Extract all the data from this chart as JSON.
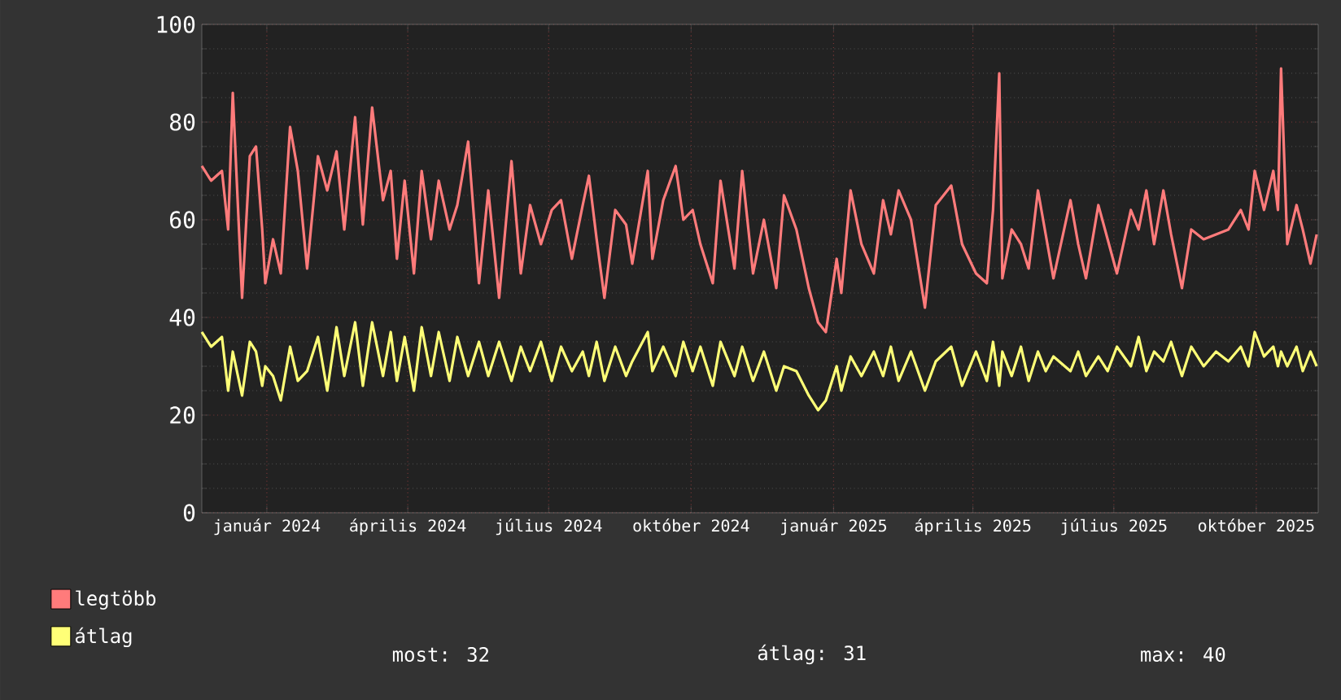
{
  "chart_data": {
    "type": "line",
    "x": [
      "2023-11-20",
      "2023-11-26",
      "2023-12-03",
      "2023-12-07",
      "2023-12-10",
      "2023-12-16",
      "2023-12-21",
      "2023-12-25",
      "2023-12-29",
      "2023-12-31",
      "2024-01-05",
      "2024-01-10",
      "2024-01-16",
      "2024-01-21",
      "2024-01-27",
      "2024-02-03",
      "2024-02-09",
      "2024-02-15",
      "2024-02-20",
      "2024-02-27",
      "2024-03-03",
      "2024-03-09",
      "2024-03-16",
      "2024-03-21",
      "2024-03-25",
      "2024-03-30",
      "2024-04-05",
      "2024-04-10",
      "2024-04-16",
      "2024-04-21",
      "2024-04-28",
      "2024-05-03",
      "2024-05-10",
      "2024-05-17",
      "2024-05-23",
      "2024-05-30",
      "2024-06-07",
      "2024-06-13",
      "2024-06-19",
      "2024-06-26",
      "2024-07-03",
      "2024-07-09",
      "2024-07-16",
      "2024-07-23",
      "2024-07-27",
      "2024-08-01",
      "2024-08-06",
      "2024-08-13",
      "2024-08-20",
      "2024-08-24",
      "2024-09-03",
      "2024-09-06",
      "2024-09-13",
      "2024-09-21",
      "2024-09-26",
      "2024-10-02",
      "2024-10-07",
      "2024-10-15",
      "2024-10-20",
      "2024-10-29",
      "2024-11-03",
      "2024-11-10",
      "2024-11-17",
      "2024-11-25",
      "2024-11-30",
      "2024-12-08",
      "2024-12-16",
      "2024-12-22",
      "2024-12-27",
      "2025-01-03",
      "2025-01-06",
      "2025-01-12",
      "2025-01-19",
      "2025-01-27",
      "2025-02-02",
      "2025-02-07",
      "2025-02-12",
      "2025-02-20",
      "2025-03-01",
      "2025-03-08",
      "2025-03-18",
      "2025-03-25",
      "2025-04-03",
      "2025-04-10",
      "2025-04-14",
      "2025-04-18",
      "2025-04-20",
      "2025-04-26",
      "2025-05-02",
      "2025-05-07",
      "2025-05-13",
      "2025-05-18",
      "2025-05-23",
      "2025-06-03",
      "2025-06-08",
      "2025-06-13",
      "2025-06-21",
      "2025-06-27",
      "2025-07-03",
      "2025-07-12",
      "2025-07-17",
      "2025-07-22",
      "2025-07-27",
      "2025-08-02",
      "2025-08-07",
      "2025-08-14",
      "2025-08-20",
      "2025-08-28",
      "2025-09-05",
      "2025-09-13",
      "2025-09-21",
      "2025-09-26",
      "2025-09-30",
      "2025-10-06",
      "2025-10-12",
      "2025-10-15",
      "2025-10-17",
      "2025-10-21",
      "2025-10-27",
      "2025-10-31",
      "2025-11-05",
      "2025-11-09"
    ],
    "series": [
      {
        "name": "legtöbb",
        "color": "#ff7b7b",
        "values": [
          71,
          68,
          70,
          58,
          86,
          44,
          73,
          75,
          58,
          47,
          56,
          49,
          79,
          70,
          50,
          73,
          66,
          74,
          58,
          81,
          59,
          83,
          64,
          70,
          52,
          68,
          49,
          70,
          56,
          68,
          58,
          63,
          76,
          47,
          66,
          44,
          72,
          49,
          63,
          55,
          62,
          64,
          52,
          63,
          69,
          56,
          44,
          62,
          59,
          51,
          70,
          52,
          64,
          71,
          60,
          62,
          55,
          47,
          68,
          50,
          70,
          49,
          60,
          46,
          65,
          58,
          46,
          39,
          37,
          52,
          45,
          66,
          55,
          49,
          64,
          57,
          66,
          60,
          42,
          63,
          67,
          55,
          49,
          47,
          62,
          90,
          48,
          58,
          55,
          50,
          66,
          57,
          48,
          64,
          55,
          48,
          63,
          56,
          49,
          62,
          58,
          66,
          55,
          66,
          57,
          46,
          58,
          56,
          57,
          58,
          62,
          58,
          70,
          62,
          70,
          62,
          91,
          55,
          63,
          58,
          51,
          57
        ]
      },
      {
        "name": "átlag",
        "color": "#ffff77",
        "values": [
          37,
          34,
          36,
          25,
          33,
          24,
          35,
          33,
          26,
          30,
          28,
          23,
          34,
          27,
          29,
          36,
          25,
          38,
          28,
          39,
          26,
          39,
          28,
          37,
          27,
          36,
          25,
          38,
          28,
          37,
          27,
          36,
          28,
          35,
          28,
          35,
          27,
          34,
          29,
          35,
          27,
          34,
          29,
          33,
          28,
          35,
          27,
          34,
          28,
          31,
          37,
          29,
          34,
          28,
          35,
          29,
          34,
          26,
          35,
          28,
          34,
          27,
          33,
          25,
          30,
          29,
          24,
          21,
          23,
          30,
          25,
          32,
          28,
          33,
          28,
          34,
          27,
          33,
          25,
          31,
          34,
          26,
          33,
          27,
          35,
          26,
          33,
          28,
          34,
          27,
          33,
          29,
          32,
          29,
          33,
          28,
          32,
          29,
          34,
          30,
          36,
          29,
          33,
          31,
          35,
          28,
          34,
          30,
          33,
          31,
          34,
          30,
          37,
          32,
          34,
          30,
          33,
          30,
          34,
          29,
          33,
          30
        ]
      }
    ],
    "xlim": [
      "2023-11-20",
      "2025-11-10"
    ],
    "xticks": [
      {
        "value": "2024-01-01",
        "label": "január 2024"
      },
      {
        "value": "2024-04-01",
        "label": "április 2024"
      },
      {
        "value": "2024-07-01",
        "label": "július 2024"
      },
      {
        "value": "2024-10-01",
        "label": "október 2024"
      },
      {
        "value": "2025-01-01",
        "label": "január 2025"
      },
      {
        "value": "2025-04-01",
        "label": "április 2025"
      },
      {
        "value": "2025-07-01",
        "label": "július 2025"
      },
      {
        "value": "2025-10-01",
        "label": "október 2025"
      }
    ],
    "ylim": [
      0,
      100
    ],
    "yticks": [
      0,
      20,
      40,
      60,
      80,
      100
    ],
    "grid": true,
    "legend": "bottom left",
    "annotations": [
      "most: 32",
      "átlag: 31",
      "max: 40"
    ]
  }
}
